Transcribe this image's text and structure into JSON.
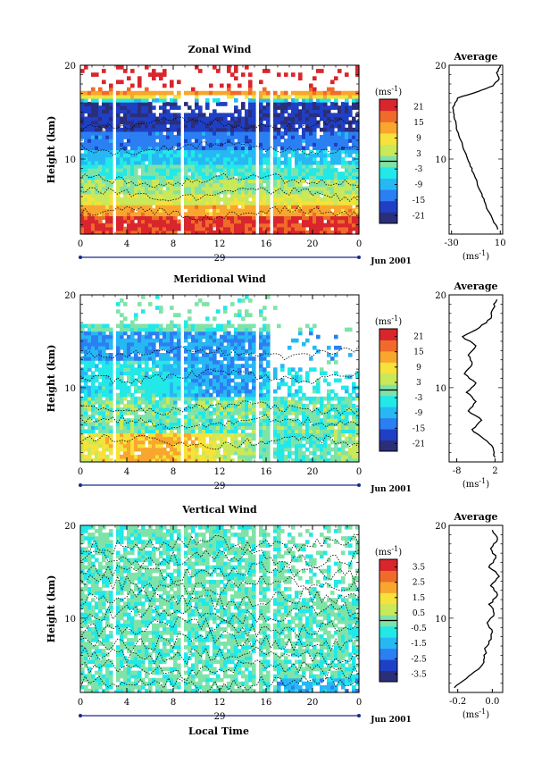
{
  "figure": {
    "xlabel": "Local Time",
    "date_label": "Jun 2001",
    "day_label": "29",
    "unit_label": "(ms",
    "unit_exp": "-1",
    "unit_close": ")",
    "average_title": "Average"
  },
  "chart_data": [
    {
      "type": "heatmap",
      "title": "Zonal Wind",
      "xlabel": "Local Time",
      "ylabel": "Height (km)",
      "x_ticks": [
        "0",
        "4",
        "8",
        "12",
        "16",
        "20",
        "0"
      ],
      "x_range": [
        0,
        24
      ],
      "y_ticks": [
        "10",
        "20"
      ],
      "y_range": [
        2,
        20
      ],
      "colorbar": {
        "unit": "(ms-1)",
        "ticks": [
          "21",
          "15",
          "9",
          "3",
          "-3",
          "-9",
          "-15",
          "-21"
        ],
        "range": [
          -24,
          24
        ]
      },
      "profile": {
        "title": "Average",
        "x_ticks": [
          "-30",
          "10"
        ],
        "x_range": [
          -32,
          12
        ],
        "x_unit": "(ms-1)",
        "y_ticks": [
          "10",
          "20"
        ],
        "points": [
          [
            8,
            2.5
          ],
          [
            4,
            3.5
          ],
          [
            0,
            4.5
          ],
          [
            -3,
            5.5
          ],
          [
            -6,
            6.5
          ],
          [
            -9,
            7.5
          ],
          [
            -12,
            8.5
          ],
          [
            -15,
            9.5
          ],
          [
            -18,
            10.5
          ],
          [
            -21,
            11.5
          ],
          [
            -24,
            12.5
          ],
          [
            -26,
            13.5
          ],
          [
            -28,
            14.5
          ],
          [
            -29,
            15.5
          ],
          [
            -25,
            16.5
          ],
          [
            -8,
            17.2
          ],
          [
            4,
            17.8
          ],
          [
            9,
            18.5
          ],
          [
            7,
            19.2
          ],
          [
            10,
            20
          ]
        ]
      }
    },
    {
      "type": "heatmap",
      "title": "Meridional Wind",
      "xlabel": "Local Time",
      "ylabel": "Height (km)",
      "x_ticks": [
        "0",
        "4",
        "8",
        "12",
        "16",
        "20",
        "0"
      ],
      "x_range": [
        0,
        24
      ],
      "y_ticks": [
        "10",
        "20"
      ],
      "y_range": [
        2,
        20
      ],
      "colorbar": {
        "unit": "(ms-1)",
        "ticks": [
          "21",
          "15",
          "9",
          "3",
          "-3",
          "-9",
          "-15",
          "-21"
        ],
        "range": [
          -24,
          24
        ]
      },
      "profile": {
        "title": "Average",
        "x_ticks": [
          "-8",
          "2"
        ],
        "x_range": [
          -10,
          4
        ],
        "x_unit": "(ms-1)",
        "y_ticks": [
          "10",
          "20"
        ],
        "points": [
          [
            2,
            2.5
          ],
          [
            1.5,
            3.5
          ],
          [
            -1,
            4.5
          ],
          [
            -4,
            5.5
          ],
          [
            -1.5,
            6.5
          ],
          [
            -5,
            7.5
          ],
          [
            -3,
            8.5
          ],
          [
            -5.5,
            9.5
          ],
          [
            -3,
            10.5
          ],
          [
            -6,
            11.5
          ],
          [
            -4,
            12.5
          ],
          [
            -5,
            13.5
          ],
          [
            -3,
            14.5
          ],
          [
            -6.5,
            15.5
          ],
          [
            -2,
            16.5
          ],
          [
            1,
            17.5
          ],
          [
            1.5,
            18.5
          ],
          [
            2.5,
            19.5
          ]
        ]
      }
    },
    {
      "type": "heatmap",
      "title": "Vertical Wind",
      "xlabel": "Local Time",
      "ylabel": "Height (km)",
      "x_ticks": [
        "0",
        "4",
        "8",
        "12",
        "16",
        "20",
        "0"
      ],
      "x_range": [
        0,
        24
      ],
      "y_ticks": [
        "10",
        "20"
      ],
      "y_range": [
        2,
        20
      ],
      "colorbar": {
        "unit": "(ms-1)",
        "ticks": [
          "3.5",
          "2.5",
          "1.5",
          "0.5",
          "-0.5",
          "-1.5",
          "-2.5",
          "-3.5"
        ],
        "range": [
          -4,
          4
        ]
      },
      "profile": {
        "title": "Average",
        "x_ticks": [
          "-0.2",
          "0.0"
        ],
        "x_range": [
          -0.25,
          0.06
        ],
        "x_unit": "(ms-1)",
        "y_ticks": [
          "10",
          "20"
        ],
        "points": [
          [
            -0.22,
            2.5
          ],
          [
            -0.15,
            3.5
          ],
          [
            -0.08,
            4.5
          ],
          [
            -0.05,
            5.5
          ],
          [
            -0.04,
            6.5
          ],
          [
            -0.02,
            7.5
          ],
          [
            0.0,
            8.5
          ],
          [
            -0.03,
            9.5
          ],
          [
            0.01,
            10.5
          ],
          [
            -0.02,
            11.5
          ],
          [
            0.03,
            12.5
          ],
          [
            -0.01,
            13.5
          ],
          [
            0.04,
            14.5
          ],
          [
            -0.02,
            15.5
          ],
          [
            0.02,
            16.5
          ],
          [
            -0.01,
            17.5
          ],
          [
            0.03,
            18.5
          ],
          [
            0.0,
            19.5
          ]
        ]
      }
    }
  ]
}
